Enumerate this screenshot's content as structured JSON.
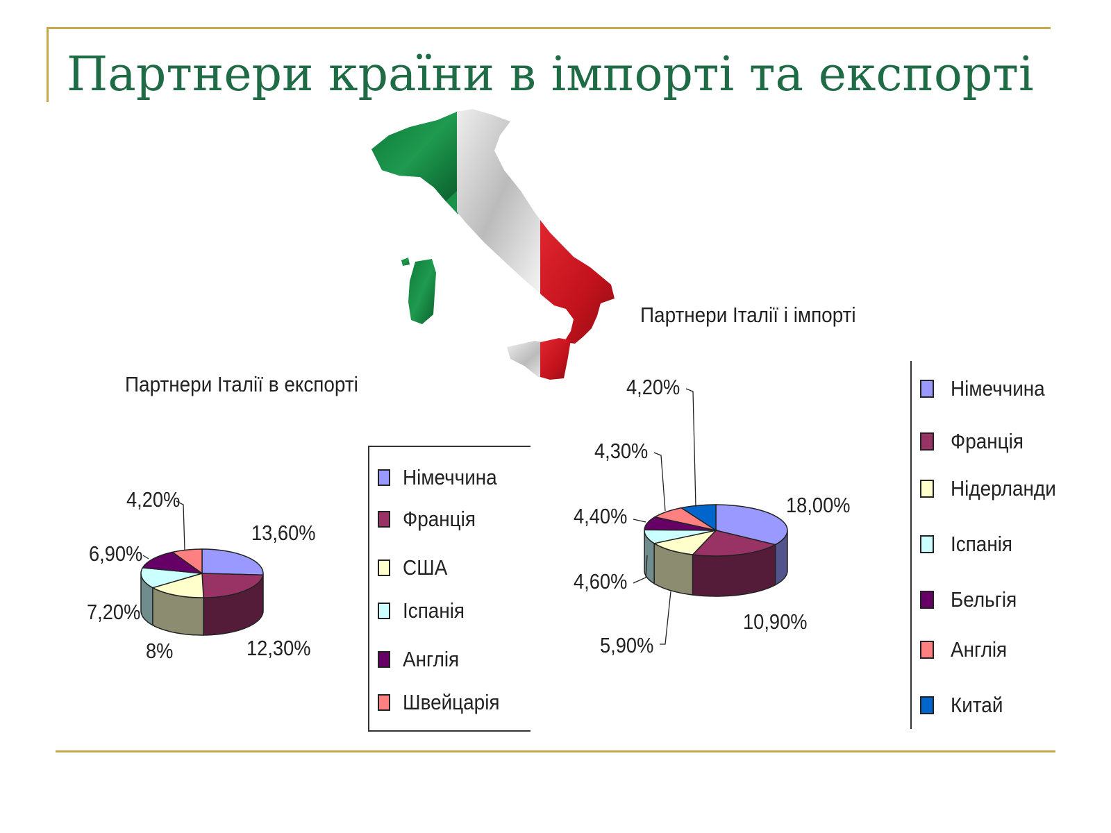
{
  "slide": {
    "title": "Партнери країни в імпорті та експорті"
  },
  "chart_data": [
    {
      "type": "pie",
      "title": "Партнери Італії в експорті",
      "legend_position": "right",
      "categories": [
        "Німеччина",
        "Франція",
        "США",
        "Іспанія",
        "Англія",
        "Швейцарія"
      ],
      "values": [
        13.6,
        12.3,
        8,
        7.2,
        6.9,
        4.2
      ],
      "data_labels": [
        "13,60%",
        "12,30%",
        "8%",
        "7,20%",
        "6,90%",
        "4,20%"
      ],
      "colors": [
        "#9999ff",
        "#993366",
        "#ffffcc",
        "#ccffff",
        "#660066",
        "#ff8080"
      ],
      "three_d": true
    },
    {
      "type": "pie",
      "title": "Партнери Італії і імпорті",
      "legend_position": "right",
      "categories": [
        "Німеччина",
        "Франція",
        "Нідерланди",
        "Іспанія",
        "Бельгія",
        "Англія",
        "Китай"
      ],
      "values": [
        18,
        10.9,
        5.9,
        4.6,
        4.4,
        4.3,
        4.2
      ],
      "data_labels": [
        "18,00%",
        "10,90%",
        "5,90%",
        "4,60%",
        "4,40%",
        "4,30%",
        "4,20%"
      ],
      "colors": [
        "#9999ff",
        "#993366",
        "#ffffcc",
        "#ccffff",
        "#660066",
        "#ff8080",
        "#0066cc"
      ],
      "three_d": true
    }
  ]
}
